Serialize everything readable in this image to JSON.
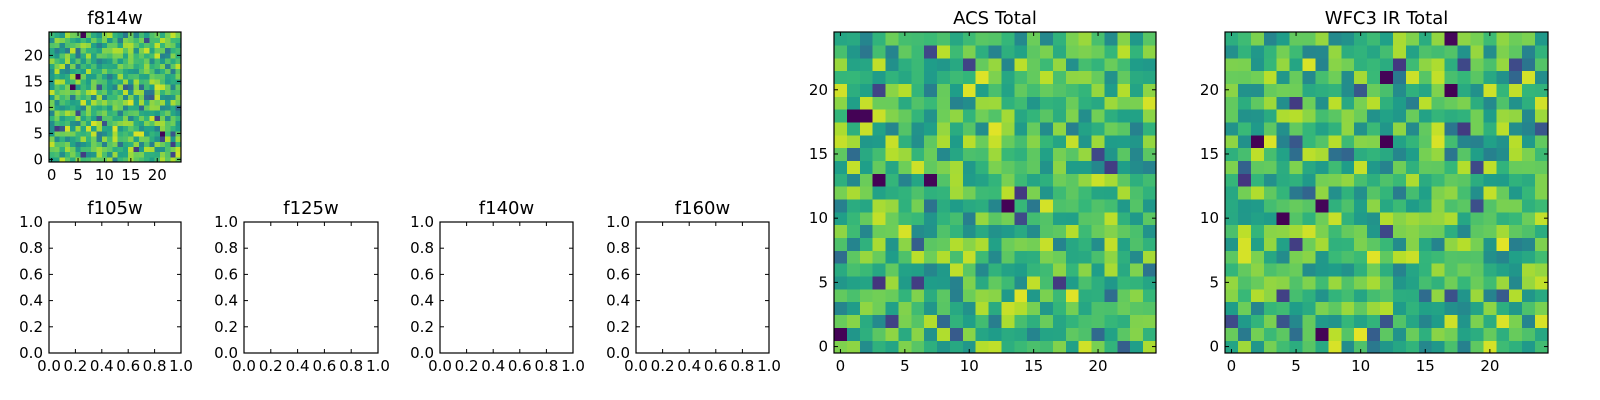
{
  "figure": {
    "background": "#ffffff",
    "colormap": "viridis"
  },
  "chart_data": [
    {
      "id": "f814w",
      "type": "heatmap",
      "title": "f814w",
      "grid_size": [
        25,
        25
      ],
      "xlim": [
        -0.5,
        24.5
      ],
      "ylim": [
        -0.5,
        24.5
      ],
      "xticks": [
        0,
        5,
        10,
        15,
        20
      ],
      "yticks": [
        0,
        5,
        10,
        15,
        20
      ],
      "xtick_labels": [
        "0",
        "5",
        "10",
        "15",
        "20"
      ],
      "ytick_labels": [
        "0",
        "5",
        "10",
        "15",
        "20"
      ],
      "value_range": [
        0,
        1
      ],
      "seed": 814,
      "min_spots": 4
    },
    {
      "id": "f105w",
      "type": "empty",
      "title": "f105w",
      "xlim": [
        0,
        1
      ],
      "ylim": [
        0,
        1
      ],
      "xtick_labels": [
        "0.0",
        "0.2",
        "0.4",
        "0.6",
        "0.8",
        "1.0"
      ],
      "ytick_labels": [
        "0.0",
        "0.2",
        "0.4",
        "0.6",
        "0.8",
        "1.0"
      ]
    },
    {
      "id": "f125w",
      "type": "empty",
      "title": "f125w",
      "xlim": [
        0,
        1
      ],
      "ylim": [
        0,
        1
      ],
      "xtick_labels": [
        "0.0",
        "0.2",
        "0.4",
        "0.6",
        "0.8",
        "1.0"
      ],
      "ytick_labels": [
        "0.0",
        "0.2",
        "0.4",
        "0.6",
        "0.8",
        "1.0"
      ]
    },
    {
      "id": "f140w",
      "type": "empty",
      "title": "f140w",
      "xlim": [
        0,
        1
      ],
      "ylim": [
        0,
        1
      ],
      "xtick_labels": [
        "0.0",
        "0.2",
        "0.4",
        "0.6",
        "0.8",
        "1.0"
      ],
      "ytick_labels": [
        "0.0",
        "0.2",
        "0.4",
        "0.6",
        "0.8",
        "1.0"
      ]
    },
    {
      "id": "f160w",
      "type": "empty",
      "title": "f160w",
      "xlim": [
        0,
        1
      ],
      "ylim": [
        0,
        1
      ],
      "xtick_labels": [
        "0.0",
        "0.2",
        "0.4",
        "0.6",
        "0.8",
        "1.0"
      ],
      "ytick_labels": [
        "0.0",
        "0.2",
        "0.4",
        "0.6",
        "0.8",
        "1.0"
      ]
    },
    {
      "id": "acs-total",
      "type": "heatmap",
      "title": "ACS Total",
      "grid_size": [
        25,
        25
      ],
      "xlim": [
        -0.5,
        24.5
      ],
      "ylim": [
        -0.5,
        24.5
      ],
      "xticks": [
        0,
        5,
        10,
        15,
        20
      ],
      "yticks": [
        0,
        5,
        10,
        15,
        20
      ],
      "xtick_labels": [
        "0",
        "5",
        "10",
        "15",
        "20"
      ],
      "ytick_labels": [
        "0",
        "5",
        "10",
        "15",
        "20"
      ],
      "value_range": [
        0,
        1
      ],
      "seed": 1701,
      "min_spots": 6
    },
    {
      "id": "wfc3-ir-total",
      "type": "heatmap",
      "title": "WFC3 IR Total",
      "grid_size": [
        25,
        25
      ],
      "xlim": [
        -0.5,
        24.5
      ],
      "ylim": [
        -0.5,
        24.5
      ],
      "xticks": [
        0,
        5,
        10,
        15,
        20
      ],
      "yticks": [
        0,
        5,
        10,
        15,
        20
      ],
      "xtick_labels": [
        "0",
        "5",
        "10",
        "15",
        "20"
      ],
      "ytick_labels": [
        "0",
        "5",
        "10",
        "15",
        "20"
      ],
      "value_range": [
        0,
        1
      ],
      "seed": 3160,
      "min_spots": 8
    }
  ]
}
